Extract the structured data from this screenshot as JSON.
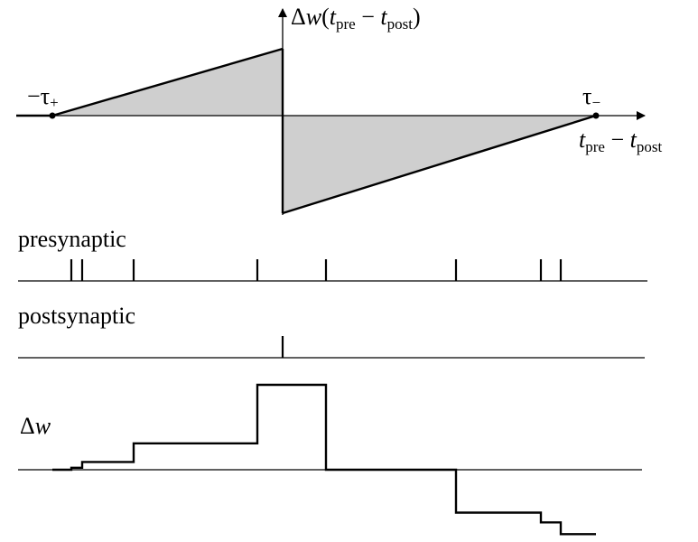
{
  "stdp_window": {
    "y_label": {
      "delta": "Δ",
      "w": "w",
      "paren_open": "(",
      "t1": "t",
      "t1_sub": "pre",
      "minus": " − ",
      "t2": "t",
      "t2_sub": "post",
      "paren_close": ")"
    },
    "x_label": {
      "t1": "t",
      "t1_sub": "pre",
      "minus": " − ",
      "t2": "t",
      "t2_sub": "post"
    },
    "left_tick_label": {
      "minus": "−",
      "tau": "τ",
      "sub": "+"
    },
    "right_tick_label": {
      "tau": "τ",
      "sub": "−"
    },
    "positive_color": "#cfcfcf",
    "negative_color": "#cfcfcf"
  },
  "presynaptic": {
    "label": "presynaptic",
    "spike_count": 8
  },
  "postsynaptic": {
    "label": "postsynaptic",
    "spike_count": 1
  },
  "weight_trace": {
    "label": {
      "delta": "Δ",
      "w": "w"
    },
    "steps": [
      {
        "level": 0.0
      },
      {
        "level": 0.02
      },
      {
        "level": 0.08
      },
      {
        "level": 0.27
      },
      {
        "level": 0.87
      },
      {
        "level": 0.0
      },
      {
        "level": -0.44
      },
      {
        "level": -0.54
      },
      {
        "level": -0.66
      }
    ]
  }
}
